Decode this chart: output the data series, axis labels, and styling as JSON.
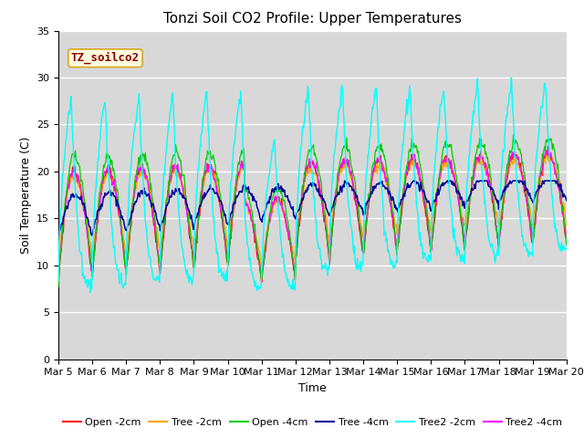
{
  "title": "Tonzi Soil CO2 Profile: Upper Temperatures",
  "xlabel": "Time",
  "ylabel": "Soil Temperature (C)",
  "ylim": [
    0,
    35
  ],
  "yticks": [
    0,
    5,
    10,
    15,
    20,
    25,
    30,
    35
  ],
  "date_labels": [
    "Mar 5",
    "Mar 6",
    "Mar 7",
    "Mar 8",
    "Mar 9",
    "Mar 10",
    "Mar 11",
    "Mar 12",
    "Mar 13",
    "Mar 14",
    "Mar 15",
    "Mar 16",
    "Mar 17",
    "Mar 18",
    "Mar 19",
    "Mar 20"
  ],
  "watermark_text": "TZ_soilco2",
  "watermark_color": "#8B0000",
  "watermark_bg": "#FFFFE0",
  "watermark_border": "#DAA520",
  "series_colors": {
    "Open -2cm": "#FF0000",
    "Tree -2cm": "#FFA500",
    "Open -4cm": "#00CC00",
    "Tree -4cm": "#000099",
    "Tree2 -2cm": "#00FFFF",
    "Tree2 -4cm": "#FF00FF"
  },
  "background_color": "#D8D8D8",
  "fig_background": "#FFFFFF",
  "grid_color": "#FFFFFF",
  "title_fontsize": 11,
  "label_fontsize": 9,
  "tick_fontsize": 8,
  "legend_fontsize": 8
}
